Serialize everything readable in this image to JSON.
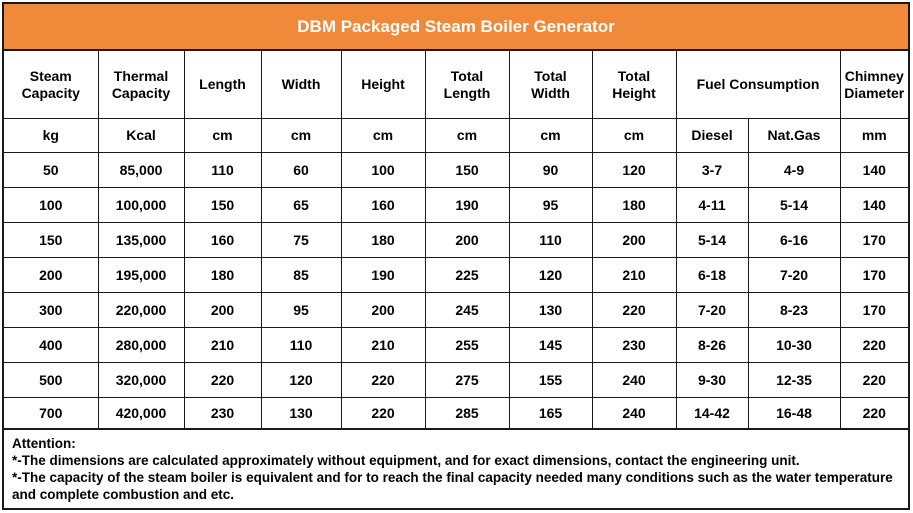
{
  "title": "DBM Packaged Steam Boiler Generator",
  "headers": {
    "row1": [
      {
        "label": "Steam\nCapacity",
        "colspan": 1
      },
      {
        "label": "Thermal\nCapacity",
        "colspan": 1
      },
      {
        "label": "Length",
        "colspan": 1
      },
      {
        "label": "Width",
        "colspan": 1
      },
      {
        "label": "Height",
        "colspan": 1
      },
      {
        "label": "Total\nLength",
        "colspan": 1
      },
      {
        "label": "Total\nWidth",
        "colspan": 1
      },
      {
        "label": "Total\nHeight",
        "colspan": 1
      },
      {
        "label": "Fuel Consumption",
        "colspan": 2
      },
      {
        "label": "Chimney\nDiameter",
        "colspan": 1
      }
    ],
    "units": [
      "kg",
      "Kcal",
      "cm",
      "cm",
      "cm",
      "cm",
      "cm",
      "cm",
      "Diesel",
      "Nat.Gas",
      "mm"
    ]
  },
  "rows": [
    [
      "50",
      "85,000",
      "110",
      "60",
      "100",
      "150",
      "90",
      "120",
      "3-7",
      "4-9",
      "140"
    ],
    [
      "100",
      "100,000",
      "150",
      "65",
      "160",
      "190",
      "95",
      "180",
      "4-11",
      "5-14",
      "140"
    ],
    [
      "150",
      "135,000",
      "160",
      "75",
      "180",
      "200",
      "110",
      "200",
      "5-14",
      "6-16",
      "170"
    ],
    [
      "200",
      "195,000",
      "180",
      "85",
      "190",
      "225",
      "120",
      "210",
      "6-18",
      "7-20",
      "170"
    ],
    [
      "300",
      "220,000",
      "200",
      "95",
      "200",
      "245",
      "130",
      "220",
      "7-20",
      "8-23",
      "170"
    ],
    [
      "400",
      "280,000",
      "210",
      "110",
      "210",
      "255",
      "145",
      "230",
      "8-26",
      "10-30",
      "220"
    ],
    [
      "500",
      "320,000",
      "220",
      "120",
      "220",
      "275",
      "155",
      "240",
      "9-30",
      "12-35",
      "220"
    ],
    [
      "700",
      "420,000",
      "230",
      "130",
      "220",
      "285",
      "165",
      "240",
      "14-42",
      "16-48",
      "220"
    ]
  ],
  "notes": {
    "heading": "Attention:",
    "lines": [
      "*-The dimensions are calculated approximately without equipment, and for exact dimensions, contact the engineering unit.",
      "*-The capacity of the steam boiler is equivalent and for to reach the final capacity needed many conditions such as  the  water temperature and complete combustion and etc."
    ]
  },
  "colors": {
    "title_bg": "#f08a3a",
    "title_text": "#ffffff",
    "border": "#1a1a1a"
  }
}
